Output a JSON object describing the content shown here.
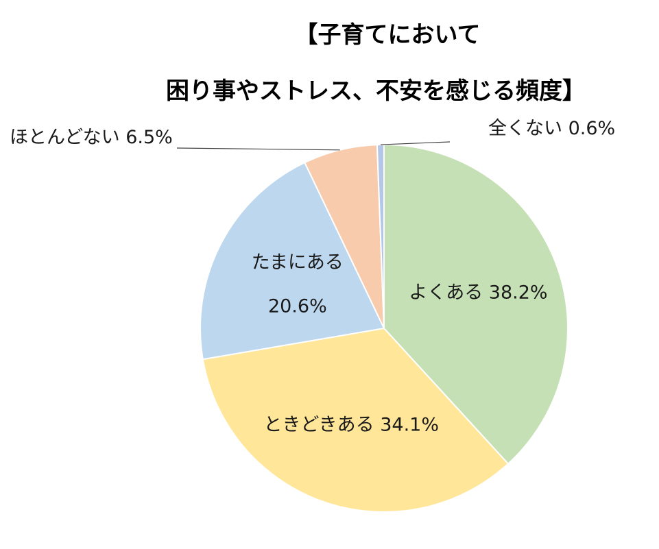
{
  "chart_data": {
    "type": "pie",
    "title_lines": [
      "【子育てにおいて",
      "困り事やストレス、不安を感じる頻度】"
    ],
    "slices": [
      {
        "label": "よくある",
        "value": 38.2,
        "value_text": "38.2%",
        "color": "#c5e0b4"
      },
      {
        "label": "ときどきある",
        "value": 34.1,
        "value_text": "34.1%",
        "color": "#ffe699"
      },
      {
        "label": "たまにある",
        "value": 20.6,
        "value_text": "20.6%",
        "color": "#bdd7ee"
      },
      {
        "label": "ほとんどない",
        "value": 6.5,
        "value_text": "6.5%",
        "color": "#f8cbad"
      },
      {
        "label": "全くない",
        "value": 0.6,
        "value_text": "0.6%",
        "color": "#b4c7e7"
      }
    ],
    "start": "top",
    "direction": "clockwise"
  }
}
